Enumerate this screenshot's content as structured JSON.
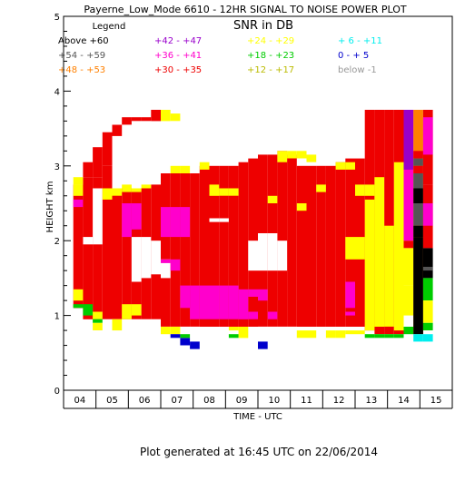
{
  "chart_data": {
    "type": "heatmap",
    "title": "Payerne_Low_Mode 6610 - 12HR SIGNAL TO NOISE POWER PLOT",
    "subtitle": "SNR in DB",
    "xlabel": "TIME - UTC",
    "ylabel": "HEIGHT km",
    "xlim": [
      4,
      16
    ],
    "ylim": [
      0,
      5
    ],
    "x_ticks": [
      "04",
      "05",
      "06",
      "07",
      "08",
      "09",
      "10",
      "11",
      "12",
      "13",
      "14",
      "15"
    ],
    "y_ticks": [
      "0",
      "1",
      "2",
      "3",
      "4",
      "5"
    ],
    "grid": false,
    "legend_title": "Legend",
    "legend": [
      {
        "label": "Above +60",
        "color": "#000000"
      },
      {
        "label": "+54 - +59",
        "color": "#555555"
      },
      {
        "label": "+48 - +53",
        "color": "#ff8000"
      },
      {
        "label": "+42 - +47",
        "color": "#9900cc"
      },
      {
        "label": "+36 - +41",
        "color": "#ff00cc"
      },
      {
        "label": "+30 - +35",
        "color": "#ee0000"
      },
      {
        "label": "+24 - +29",
        "color": "#ffff00"
      },
      {
        "label": "+18 - +23",
        "color": "#00cc00"
      },
      {
        "label": "+12 - +17",
        "color": "#bbbb00"
      },
      {
        "label": "+ 6 - +11",
        "color": "#00eeee"
      },
      {
        "label": "0 - + 5",
        "color": "#0000cc"
      },
      {
        "label": "below -1",
        "color": "#999999"
      }
    ],
    "cells": [
      {
        "x": 4.6,
        "y0": 2.85,
        "y1": 3.05,
        "color": "#ee0000"
      },
      {
        "x": 4.9,
        "y0": 2.85,
        "y1": 3.25,
        "color": "#ee0000"
      },
      {
        "x": 5.2,
        "y0": 3.0,
        "y1": 3.45,
        "color": "#ee0000"
      },
      {
        "x": 5.5,
        "y0": 3.4,
        "y1": 3.55,
        "color": "#ee0000"
      },
      {
        "x": 5.8,
        "y0": 3.55,
        "y1": 3.65,
        "color": "#ee0000"
      },
      {
        "x": 6.1,
        "y0": 3.6,
        "y1": 3.65,
        "color": "#ee0000"
      },
      {
        "x": 6.4,
        "y0": 3.6,
        "y1": 3.65,
        "color": "#ee0000"
      },
      {
        "x": 6.7,
        "y0": 3.6,
        "y1": 3.75,
        "color": "#ee0000"
      },
      {
        "x": 7.0,
        "y0": 3.6,
        "y1": 3.75,
        "color": "#ffff00"
      },
      {
        "x": 7.3,
        "y0": 3.6,
        "y1": 3.7,
        "color": "#ffff00"
      },
      {
        "x": 4.6,
        "y0": 0.95,
        "y1": 2.85,
        "color": "#ee0000"
      },
      {
        "x": 4.9,
        "y0": 0.95,
        "y1": 2.85,
        "color": "#ee0000"
      },
      {
        "x": 5.2,
        "y0": 0.95,
        "y1": 3.0,
        "color": "#ee0000"
      },
      {
        "x": 5.5,
        "y0": 0.95,
        "y1": 2.7,
        "color": "#ee0000"
      },
      {
        "x": 5.8,
        "y0": 0.95,
        "y1": 2.7,
        "color": "#ee0000"
      },
      {
        "x": 6.1,
        "y0": 0.95,
        "y1": 2.7,
        "color": "#ee0000"
      },
      {
        "x": 6.4,
        "y0": 0.95,
        "y1": 2.7,
        "color": "#ee0000"
      },
      {
        "x": 6.7,
        "y0": 0.95,
        "y1": 2.75,
        "color": "#ee0000"
      },
      {
        "x": 7.0,
        "y0": 0.85,
        "y1": 2.9,
        "color": "#ee0000"
      },
      {
        "x": 7.3,
        "y0": 0.85,
        "y1": 2.9,
        "color": "#ee0000"
      },
      {
        "x": 7.6,
        "y0": 0.85,
        "y1": 2.9,
        "color": "#ee0000"
      },
      {
        "x": 7.9,
        "y0": 0.85,
        "y1": 2.9,
        "color": "#ee0000"
      },
      {
        "x": 8.2,
        "y0": 0.85,
        "y1": 3.0,
        "color": "#ee0000"
      },
      {
        "x": 8.5,
        "y0": 0.85,
        "y1": 3.0,
        "color": "#ee0000"
      },
      {
        "x": 8.8,
        "y0": 0.85,
        "y1": 3.0,
        "color": "#ee0000"
      },
      {
        "x": 9.1,
        "y0": 0.85,
        "y1": 3.0,
        "color": "#ee0000"
      },
      {
        "x": 9.4,
        "y0": 0.85,
        "y1": 3.05,
        "color": "#ee0000"
      },
      {
        "x": 9.7,
        "y0": 0.85,
        "y1": 3.1,
        "color": "#ee0000"
      },
      {
        "x": 10.0,
        "y0": 0.85,
        "y1": 3.15,
        "color": "#ee0000"
      },
      {
        "x": 10.3,
        "y0": 0.85,
        "y1": 3.15,
        "color": "#ee0000"
      },
      {
        "x": 10.6,
        "y0": 0.85,
        "y1": 3.2,
        "color": "#ee0000"
      },
      {
        "x": 10.9,
        "y0": 0.85,
        "y1": 3.15,
        "color": "#ee0000"
      },
      {
        "x": 11.2,
        "y0": 0.85,
        "y1": 3.0,
        "color": "#ee0000"
      },
      {
        "x": 11.5,
        "y0": 0.85,
        "y1": 3.0,
        "color": "#ee0000"
      },
      {
        "x": 11.8,
        "y0": 0.85,
        "y1": 3.0,
        "color": "#ee0000"
      },
      {
        "x": 12.1,
        "y0": 0.85,
        "y1": 3.0,
        "color": "#ee0000"
      },
      {
        "x": 12.4,
        "y0": 0.85,
        "y1": 3.05,
        "color": "#ee0000"
      },
      {
        "x": 12.7,
        "y0": 0.85,
        "y1": 3.1,
        "color": "#ee0000"
      },
      {
        "x": 13.0,
        "y0": 0.85,
        "y1": 3.1,
        "color": "#ee0000"
      },
      {
        "x": 13.3,
        "y0": 0.8,
        "y1": 3.75,
        "color": "#ee0000"
      },
      {
        "x": 13.6,
        "y0": 0.75,
        "y1": 3.75,
        "color": "#ee0000"
      },
      {
        "x": 13.9,
        "y0": 0.75,
        "y1": 3.75,
        "color": "#ee0000"
      },
      {
        "x": 14.2,
        "y0": 0.75,
        "y1": 3.75,
        "color": "#ee0000"
      },
      {
        "x": 4.9,
        "y0": 1.95,
        "y1": 2.7,
        "color": "#ffffff"
      },
      {
        "x": 6.1,
        "y0": 1.45,
        "y1": 2.05,
        "color": "#ffffff"
      },
      {
        "x": 6.4,
        "y0": 1.5,
        "y1": 2.05,
        "color": "#ffffff"
      },
      {
        "x": 6.7,
        "y0": 1.55,
        "y1": 2.0,
        "color": "#ffffff"
      },
      {
        "x": 7.0,
        "y0": 1.5,
        "y1": 1.75,
        "color": "#ffffff"
      },
      {
        "x": 9.7,
        "y0": 1.6,
        "y1": 2.0,
        "color": "#ffffff"
      },
      {
        "x": 10.0,
        "y0": 1.6,
        "y1": 2.1,
        "color": "#ffffff"
      },
      {
        "x": 10.3,
        "y0": 1.6,
        "y1": 2.1,
        "color": "#ffffff"
      },
      {
        "x": 10.6,
        "y0": 1.6,
        "y1": 2.0,
        "color": "#ffffff"
      },
      {
        "x": 8.5,
        "y0": 2.25,
        "y1": 2.3,
        "color": "#ffffff"
      },
      {
        "x": 8.8,
        "y0": 2.25,
        "y1": 2.3,
        "color": "#ffffff"
      },
      {
        "x": 4.6,
        "y0": 1.95,
        "y1": 2.05,
        "color": "#ffffff"
      },
      {
        "x": 4.3,
        "y0": 1.1,
        "y1": 2.75,
        "color": "#ee0000"
      },
      {
        "x": 4.3,
        "y0": 2.45,
        "y1": 2.55,
        "color": "#ff00cc"
      },
      {
        "x": 4.3,
        "y0": 2.6,
        "y1": 2.75,
        "color": "#ffff00"
      },
      {
        "x": 4.3,
        "y0": 2.75,
        "y1": 2.85,
        "color": "#ffff00"
      },
      {
        "x": 4.3,
        "y0": 1.2,
        "y1": 1.35,
        "color": "#ffff00"
      },
      {
        "x": 4.3,
        "y0": 1.1,
        "y1": 1.15,
        "color": "#00cc00"
      },
      {
        "x": 4.6,
        "y0": 1.0,
        "y1": 1.15,
        "color": "#00cc00"
      },
      {
        "x": 4.9,
        "y0": 0.95,
        "y1": 1.05,
        "color": "#ffff00"
      },
      {
        "x": 4.9,
        "y0": 0.9,
        "y1": 0.95,
        "color": "#00cc00"
      },
      {
        "x": 5.5,
        "y0": 0.8,
        "y1": 0.95,
        "color": "#ffff00"
      },
      {
        "x": 4.9,
        "y0": 0.8,
        "y1": 0.9,
        "color": "#ffff00"
      },
      {
        "x": 5.8,
        "y0": 0.95,
        "y1": 1.15,
        "color": "#ffff00"
      },
      {
        "x": 6.1,
        "y0": 1.0,
        "y1": 1.15,
        "color": "#ffff00"
      },
      {
        "x": 5.2,
        "y0": 2.55,
        "y1": 2.7,
        "color": "#ffff00"
      },
      {
        "x": 5.5,
        "y0": 2.6,
        "y1": 2.7,
        "color": "#ffff00"
      },
      {
        "x": 5.8,
        "y0": 2.65,
        "y1": 2.75,
        "color": "#ffff00"
      },
      {
        "x": 6.1,
        "y0": 2.65,
        "y1": 2.7,
        "color": "#ffff00"
      },
      {
        "x": 6.4,
        "y0": 2.7,
        "y1": 2.75,
        "color": "#ffff00"
      },
      {
        "x": 7.3,
        "y0": 2.9,
        "y1": 3.0,
        "color": "#ffff00"
      },
      {
        "x": 7.6,
        "y0": 2.9,
        "y1": 3.0,
        "color": "#ffff00"
      },
      {
        "x": 8.2,
        "y0": 2.95,
        "y1": 3.05,
        "color": "#ffff00"
      },
      {
        "x": 10.6,
        "y0": 3.05,
        "y1": 3.2,
        "color": "#ffff00"
      },
      {
        "x": 10.9,
        "y0": 3.1,
        "y1": 3.2,
        "color": "#ffff00"
      },
      {
        "x": 11.2,
        "y0": 3.1,
        "y1": 3.2,
        "color": "#ffff00"
      },
      {
        "x": 11.5,
        "y0": 3.05,
        "y1": 3.15,
        "color": "#ffff00"
      },
      {
        "x": 8.5,
        "y0": 2.6,
        "y1": 2.75,
        "color": "#ffff00"
      },
      {
        "x": 8.8,
        "y0": 2.6,
        "y1": 2.7,
        "color": "#ffff00"
      },
      {
        "x": 9.1,
        "y0": 2.6,
        "y1": 2.7,
        "color": "#ffff00"
      },
      {
        "x": 10.3,
        "y0": 2.5,
        "y1": 2.6,
        "color": "#ffff00"
      },
      {
        "x": 11.2,
        "y0": 2.4,
        "y1": 2.5,
        "color": "#ffff00"
      },
      {
        "x": 11.8,
        "y0": 2.65,
        "y1": 2.75,
        "color": "#ffff00"
      },
      {
        "x": 12.4,
        "y0": 2.95,
        "y1": 3.05,
        "color": "#ffff00"
      },
      {
        "x": 12.7,
        "y0": 2.95,
        "y1": 3.05,
        "color": "#ffff00"
      },
      {
        "x": 13.0,
        "y0": 2.6,
        "y1": 2.75,
        "color": "#ffff00"
      },
      {
        "x": 13.3,
        "y0": 2.6,
        "y1": 2.75,
        "color": "#ffff00"
      },
      {
        "x": 13.3,
        "y0": 0.8,
        "y1": 2.55,
        "color": "#ffff00"
      },
      {
        "x": 13.6,
        "y0": 0.85,
        "y1": 2.85,
        "color": "#ffff00"
      },
      {
        "x": 13.9,
        "y0": 0.85,
        "y1": 2.2,
        "color": "#ffff00"
      },
      {
        "x": 14.2,
        "y0": 0.8,
        "y1": 3.05,
        "color": "#ffff00"
      },
      {
        "x": 12.7,
        "y0": 1.75,
        "y1": 2.05,
        "color": "#ffff00"
      },
      {
        "x": 13.0,
        "y0": 1.75,
        "y1": 2.05,
        "color": "#ffff00"
      },
      {
        "x": 12.7,
        "y0": 0.75,
        "y1": 0.8,
        "color": "#ffff00"
      },
      {
        "x": 13.0,
        "y0": 0.75,
        "y1": 0.8,
        "color": "#ffff00"
      },
      {
        "x": 13.3,
        "y0": 0.7,
        "y1": 0.75,
        "color": "#00cc00"
      },
      {
        "x": 13.6,
        "y0": 0.7,
        "y1": 0.75,
        "color": "#00cc00"
      },
      {
        "x": 13.9,
        "y0": 0.7,
        "y1": 0.75,
        "color": "#00cc00"
      },
      {
        "x": 14.2,
        "y0": 0.7,
        "y1": 0.75,
        "color": "#00cc00"
      },
      {
        "x": 11.2,
        "y0": 0.7,
        "y1": 0.8,
        "color": "#ffff00"
      },
      {
        "x": 11.5,
        "y0": 0.7,
        "y1": 0.8,
        "color": "#ffff00"
      },
      {
        "x": 12.1,
        "y0": 0.7,
        "y1": 0.8,
        "color": "#ffff00"
      },
      {
        "x": 12.4,
        "y0": 0.7,
        "y1": 0.8,
        "color": "#ffff00"
      },
      {
        "x": 7.0,
        "y0": 0.75,
        "y1": 0.85,
        "color": "#ffff00"
      },
      {
        "x": 7.3,
        "y0": 0.75,
        "y1": 0.85,
        "color": "#ffff00"
      },
      {
        "x": 9.1,
        "y0": 0.8,
        "y1": 0.85,
        "color": "#ffff00"
      },
      {
        "x": 9.4,
        "y0": 0.7,
        "y1": 0.85,
        "color": "#ffff00"
      },
      {
        "x": 5.8,
        "y0": 2.05,
        "y1": 2.5,
        "color": "#ff00cc"
      },
      {
        "x": 6.1,
        "y0": 2.15,
        "y1": 2.5,
        "color": "#ff00cc"
      },
      {
        "x": 7.0,
        "y0": 2.05,
        "y1": 2.45,
        "color": "#ff00cc"
      },
      {
        "x": 7.3,
        "y0": 2.05,
        "y1": 2.45,
        "color": "#ff00cc"
      },
      {
        "x": 7.6,
        "y0": 2.05,
        "y1": 2.45,
        "color": "#ff00cc"
      },
      {
        "x": 7.0,
        "y0": 1.7,
        "y1": 1.75,
        "color": "#ff00cc"
      },
      {
        "x": 7.3,
        "y0": 1.6,
        "y1": 1.75,
        "color": "#ff00cc"
      },
      {
        "x": 7.6,
        "y0": 1.1,
        "y1": 1.4,
        "color": "#ff00cc"
      },
      {
        "x": 7.9,
        "y0": 0.95,
        "y1": 1.4,
        "color": "#ff00cc"
      },
      {
        "x": 8.2,
        "y0": 0.95,
        "y1": 1.4,
        "color": "#ff00cc"
      },
      {
        "x": 8.5,
        "y0": 0.95,
        "y1": 1.4,
        "color": "#ff00cc"
      },
      {
        "x": 8.8,
        "y0": 0.95,
        "y1": 1.4,
        "color": "#ff00cc"
      },
      {
        "x": 9.1,
        "y0": 0.95,
        "y1": 1.4,
        "color": "#ff00cc"
      },
      {
        "x": 9.4,
        "y0": 0.95,
        "y1": 1.35,
        "color": "#ff00cc"
      },
      {
        "x": 9.7,
        "y0": 1.25,
        "y1": 1.35,
        "color": "#ff00cc"
      },
      {
        "x": 10.0,
        "y0": 1.2,
        "y1": 1.35,
        "color": "#ff00cc"
      },
      {
        "x": 9.7,
        "y0": 0.95,
        "y1": 1.05,
        "color": "#ff00cc"
      },
      {
        "x": 10.3,
        "y0": 0.95,
        "y1": 1.05,
        "color": "#ff00cc"
      },
      {
        "x": 12.7,
        "y0": 1.1,
        "y1": 1.45,
        "color": "#ff00cc"
      },
      {
        "x": 12.7,
        "y0": 1.0,
        "y1": 1.05,
        "color": "#ff00cc"
      },
      {
        "x": 14.5,
        "y0": 2.0,
        "y1": 3.75,
        "color": "#ff00cc"
      },
      {
        "x": 14.5,
        "y0": 2.95,
        "y1": 3.75,
        "color": "#9900cc"
      },
      {
        "x": 14.5,
        "y0": 1.9,
        "y1": 2.0,
        "color": "#ee0000"
      },
      {
        "x": 14.5,
        "y0": 1.4,
        "y1": 1.9,
        "color": "#ffff00"
      },
      {
        "x": 14.5,
        "y0": 1.0,
        "y1": 1.4,
        "color": "#ffff00"
      },
      {
        "x": 14.5,
        "y0": 0.75,
        "y1": 0.85,
        "color": "#00cc00"
      },
      {
        "x": 14.8,
        "y0": 0.75,
        "y1": 3.75,
        "color": "#ff8000"
      },
      {
        "x": 14.8,
        "y0": 3.0,
        "y1": 3.1,
        "color": "#555555"
      },
      {
        "x": 14.8,
        "y0": 3.1,
        "y1": 3.2,
        "color": "#ee0000"
      },
      {
        "x": 14.8,
        "y0": 2.9,
        "y1": 3.0,
        "color": "#ee0000"
      },
      {
        "x": 14.8,
        "y0": 2.7,
        "y1": 2.9,
        "color": "#555555"
      },
      {
        "x": 14.8,
        "y0": 2.5,
        "y1": 2.7,
        "color": "#000000"
      },
      {
        "x": 14.8,
        "y0": 2.2,
        "y1": 2.5,
        "color": "#555555"
      },
      {
        "x": 14.8,
        "y0": 2.05,
        "y1": 2.2,
        "color": "#000000"
      },
      {
        "x": 14.8,
        "y0": 0.75,
        "y1": 2.05,
        "color": "#000000"
      },
      {
        "x": 14.8,
        "y0": 0.65,
        "y1": 0.75,
        "color": "#00eeee"
      },
      {
        "x": 15.1,
        "y0": 2.75,
        "y1": 3.75,
        "color": "#ee0000"
      },
      {
        "x": 15.1,
        "y0": 3.15,
        "y1": 3.65,
        "color": "#ff00cc"
      },
      {
        "x": 15.1,
        "y0": 1.9,
        "y1": 2.75,
        "color": "#ee0000"
      },
      {
        "x": 15.1,
        "y0": 2.2,
        "y1": 2.5,
        "color": "#ff00cc"
      },
      {
        "x": 15.1,
        "y0": 1.5,
        "y1": 1.9,
        "color": "#000000"
      },
      {
        "x": 15.1,
        "y0": 1.6,
        "y1": 1.65,
        "color": "#555555"
      },
      {
        "x": 15.1,
        "y0": 1.2,
        "y1": 1.5,
        "color": "#00cc00"
      },
      {
        "x": 15.1,
        "y0": 0.9,
        "y1": 1.2,
        "color": "#ffff00"
      },
      {
        "x": 15.1,
        "y0": 0.8,
        "y1": 0.9,
        "color": "#00cc00"
      },
      {
        "x": 15.1,
        "y0": 0.65,
        "y1": 0.75,
        "color": "#00eeee"
      },
      {
        "x": 7.3,
        "y0": 0.7,
        "y1": 0.75,
        "color": "#0000cc"
      },
      {
        "x": 7.6,
        "y0": 0.6,
        "y1": 0.7,
        "color": "#0000cc"
      },
      {
        "x": 7.6,
        "y0": 0.7,
        "y1": 0.75,
        "color": "#00cc00"
      },
      {
        "x": 9.1,
        "y0": 0.7,
        "y1": 0.75,
        "color": "#00cc00"
      },
      {
        "x": 10.0,
        "y0": 0.55,
        "y1": 0.65,
        "color": "#0000cc"
      },
      {
        "x": 7.9,
        "y0": 0.55,
        "y1": 0.65,
        "color": "#0000cc"
      }
    ]
  },
  "footer": "Plot generated at 16:45 UTC on 22/06/2014"
}
